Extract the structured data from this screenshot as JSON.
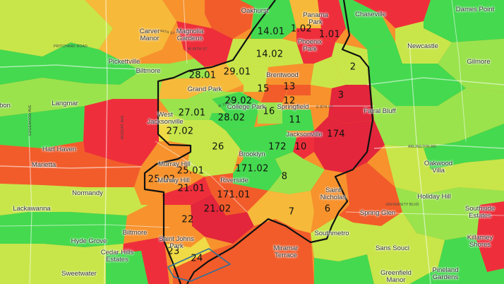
{
  "map": {
    "colors": {
      "red": "#ee2f3b",
      "crimson": "#e3263b",
      "orange_red": "#f25c2a",
      "orange": "#f7922d",
      "amber": "#f6b93a",
      "yellow": "#f0da45",
      "yellow_green": "#c8e64a",
      "light_green": "#9ae34c",
      "green": "#45d94f",
      "blue_outline": "#2f6f9a",
      "boundary": "#111111"
    },
    "tracts": [
      {
        "id": "1.02",
        "label": "1.02"
      },
      {
        "id": "1.01",
        "label": "1.01"
      },
      {
        "id": "14.01",
        "label": "14.01"
      },
      {
        "id": "14.02",
        "label": "14.02"
      },
      {
        "id": "2",
        "label": "2"
      },
      {
        "id": "28.01",
        "label": "28.01"
      },
      {
        "id": "29.01",
        "label": "29.01"
      },
      {
        "id": "15",
        "label": "15"
      },
      {
        "id": "13",
        "label": "13"
      },
      {
        "id": "3",
        "label": "3"
      },
      {
        "id": "29.02",
        "label": "29.02"
      },
      {
        "id": "12",
        "label": "12"
      },
      {
        "id": "27.01",
        "label": "27.01"
      },
      {
        "id": "28.02",
        "label": "28.02"
      },
      {
        "id": "16",
        "label": "16"
      },
      {
        "id": "11",
        "label": "11"
      },
      {
        "id": "174",
        "label": "174"
      },
      {
        "id": "27.02",
        "label": "27.02"
      },
      {
        "id": "26",
        "label": "26"
      },
      {
        "id": "172",
        "label": "172"
      },
      {
        "id": "10",
        "label": "10"
      },
      {
        "id": "171.02",
        "label": "171.02"
      },
      {
        "id": "25.01",
        "label": "25.01"
      },
      {
        "id": "25.02",
        "label": "25.02"
      },
      {
        "id": "8",
        "label": "8"
      },
      {
        "id": "21.01",
        "label": "21.01"
      },
      {
        "id": "171.01",
        "label": "171.01"
      },
      {
        "id": "6",
        "label": "6"
      },
      {
        "id": "21.02",
        "label": "21.02"
      },
      {
        "id": "7",
        "label": "7"
      },
      {
        "id": "22",
        "label": "22"
      },
      {
        "id": "23",
        "label": "23"
      },
      {
        "id": "24",
        "label": "24"
      }
    ],
    "places": [
      {
        "id": "oakhurst",
        "label": "Oakhurst"
      },
      {
        "id": "panama-park",
        "label": "Panama\nPark"
      },
      {
        "id": "chaseville",
        "label": "Chaseville"
      },
      {
        "id": "dames-point",
        "label": "Dames Point"
      },
      {
        "id": "carver-manor",
        "label": "Carver\nManor"
      },
      {
        "id": "magnolia-gardens",
        "label": "Magnolia\nGardens"
      },
      {
        "id": "phoenix-park",
        "label": "Phoenix\nPark"
      },
      {
        "id": "newcastle",
        "label": "Newcastle"
      },
      {
        "id": "pickettville",
        "label": "Pickettville"
      },
      {
        "id": "gilmore",
        "label": "Gilmore"
      },
      {
        "id": "biltmore-north",
        "label": "Biltmore"
      },
      {
        "id": "brentwood",
        "label": "Brentwood"
      },
      {
        "id": "grand-park",
        "label": "Grand Park"
      },
      {
        "id": "college-park",
        "label": "College Park"
      },
      {
        "id": "springfield",
        "label": "Springfield"
      },
      {
        "id": "bon",
        "label": "bon"
      },
      {
        "id": "langmar",
        "label": "Langmar"
      },
      {
        "id": "west-jacksonville",
        "label": "West\nJacksonville"
      },
      {
        "id": "fairal-bluff",
        "label": "Fairal Bluff"
      },
      {
        "id": "hart-haven",
        "label": "Hart Haven"
      },
      {
        "id": "jacksonville",
        "label": "Jacksonville"
      },
      {
        "id": "marietta",
        "label": "Marietta"
      },
      {
        "id": "murray-hill-north",
        "label": "Murray Hill"
      },
      {
        "id": "brooklyn",
        "label": "Brooklyn"
      },
      {
        "id": "oakwood-villa",
        "label": "Oakwood\nVilla"
      },
      {
        "id": "normandy",
        "label": "Normandy"
      },
      {
        "id": "murray-hill-south",
        "label": "Murray Hill"
      },
      {
        "id": "riverside",
        "label": "Riverside"
      },
      {
        "id": "saint-nicholas",
        "label": "Saint\nNicholas"
      },
      {
        "id": "holiday-hill",
        "label": "Holiday Hill"
      },
      {
        "id": "lackawanna",
        "label": "Lackawanna"
      },
      {
        "id": "southside-estates",
        "label": "Southside\nEstates"
      },
      {
        "id": "spring-glen",
        "label": "Spring Glen"
      },
      {
        "id": "biltmore-south",
        "label": "Biltmore"
      },
      {
        "id": "southmetro",
        "label": "Southmetro"
      },
      {
        "id": "killarney-shores",
        "label": "Killarney\nShores"
      },
      {
        "id": "hyde-grove",
        "label": "Hyde Grove"
      },
      {
        "id": "saint-johns-park",
        "label": "Saint Johns\nPark"
      },
      {
        "id": "cedar-hills-estates",
        "label": "Cedar Hills\nEstates"
      },
      {
        "id": "miramar-terrace",
        "label": "Miramar\nTerrace"
      },
      {
        "id": "sans-souci",
        "label": "Sans Souci"
      },
      {
        "id": "sweetwater",
        "label": "Sweetwater"
      },
      {
        "id": "greenfield-manor",
        "label": "Greenfield\nManor"
      },
      {
        "id": "pineland-gardens",
        "label": "Pineland\nGardens"
      }
    ],
    "streets": [
      {
        "id": "pritchard-road",
        "label": "PRITCHARD ROAD"
      },
      {
        "id": "44th-st",
        "label": "44TH ST"
      },
      {
        "id": "w-45th-st",
        "label": "W 45TH ST"
      },
      {
        "id": "w-1st-st",
        "label": "W 1ST ST"
      },
      {
        "id": "e-8th-st",
        "label": "E 8TH ST"
      },
      {
        "id": "edgewood-ave",
        "label": "EDGEWOOD AVE"
      },
      {
        "id": "mcduff-ave",
        "label": "MCDUFF AVE"
      },
      {
        "id": "arlington-rd",
        "label": "ARLINGTON RD"
      },
      {
        "id": "university-blvd",
        "label": "UNIVERSITY BLVD"
      }
    ]
  }
}
